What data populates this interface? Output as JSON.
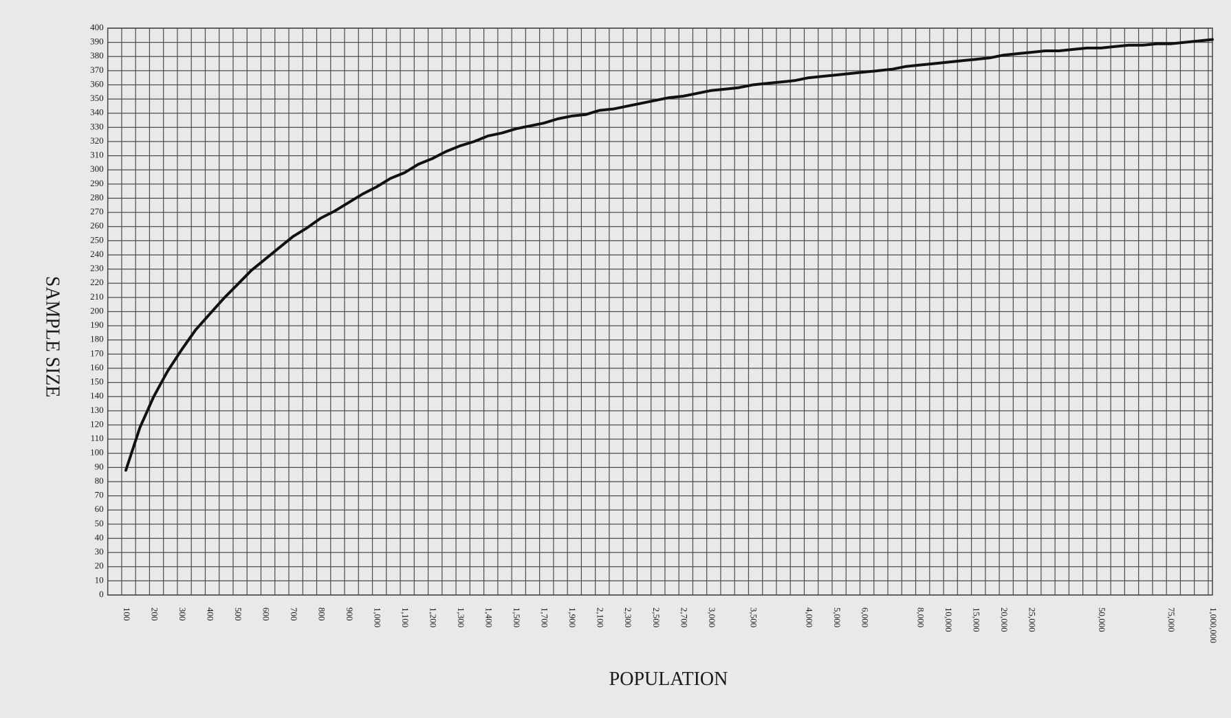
{
  "chart_data": {
    "type": "line",
    "xlabel": "POPULATION",
    "ylabel": "SAMPLE SIZE",
    "categories": [
      "100",
      null,
      "200",
      null,
      "300",
      null,
      "400",
      null,
      "500",
      null,
      "600",
      null,
      "700",
      null,
      "800",
      null,
      "900",
      null,
      "1,000",
      null,
      "1,100",
      null,
      "1,200",
      null,
      "1,300",
      null,
      "1,400",
      null,
      "1,500",
      null,
      "1,700",
      null,
      "1,900",
      null,
      "2,100",
      null,
      "2,300",
      null,
      "2,500",
      null,
      "2,700",
      null,
      "3,000",
      null,
      null,
      "3,500",
      null,
      null,
      null,
      "4,000",
      null,
      "5,000",
      null,
      "6,000",
      null,
      null,
      null,
      "8,000",
      null,
      "10,000",
      null,
      "15,000",
      null,
      "20,000",
      null,
      "25,000",
      null,
      null,
      null,
      null,
      "50,000",
      null,
      null,
      null,
      null,
      "75,000",
      null,
      null,
      "1,000,000"
    ],
    "values": [
      88,
      118,
      140,
      158,
      173,
      187,
      198,
      209,
      219,
      229,
      237,
      245,
      253,
      259,
      266,
      271,
      277,
      283,
      288,
      294,
      298,
      304,
      308,
      313,
      317,
      320,
      324,
      326,
      329,
      331,
      333,
      336,
      338,
      339,
      342,
      343,
      345,
      347,
      349,
      351,
      352,
      354,
      356,
      357,
      358,
      360,
      361,
      362,
      363,
      365,
      366,
      367,
      368,
      369,
      370,
      371,
      373,
      374,
      375,
      376,
      377,
      378,
      379,
      381,
      382,
      383,
      384,
      384,
      385,
      386,
      386,
      387,
      388,
      388,
      389,
      389,
      390,
      391,
      392
    ],
    "color": "#111111",
    "ylim": [
      0,
      400
    ],
    "yticks": [
      0,
      10,
      20,
      30,
      40,
      50,
      60,
      70,
      80,
      90,
      100,
      110,
      120,
      130,
      140,
      150,
      160,
      170,
      180,
      190,
      200,
      210,
      220,
      230,
      240,
      250,
      260,
      270,
      280,
      290,
      300,
      310,
      320,
      330,
      340,
      350,
      360,
      370,
      380,
      390,
      400
    ],
    "grid": true
  }
}
